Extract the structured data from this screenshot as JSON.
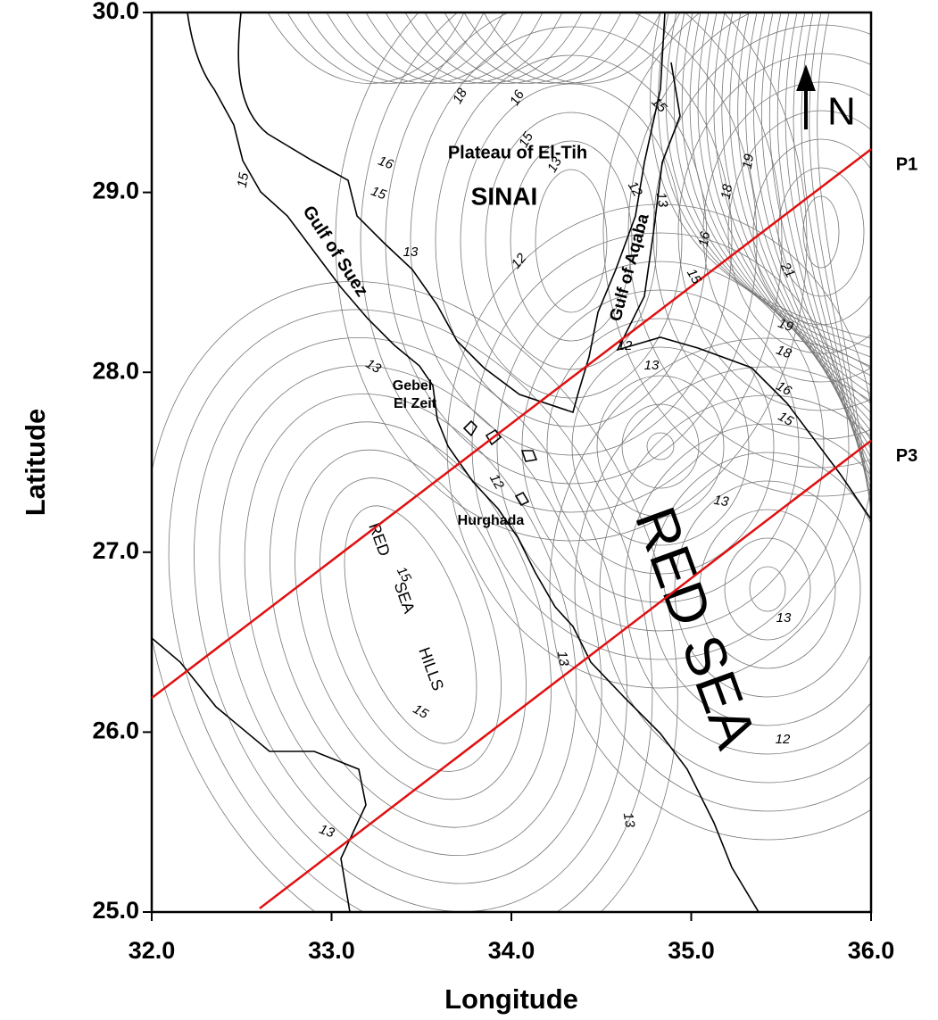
{
  "map": {
    "type": "contour-map",
    "x_label": "Longitude",
    "y_label": "Latitude",
    "xlim": [
      32,
      36
    ],
    "ylim": [
      25,
      30
    ],
    "xticks": [
      {
        "value": 32,
        "label": "32.0"
      },
      {
        "value": 33,
        "label": "33.0"
      },
      {
        "value": 34,
        "label": "34.0"
      },
      {
        "value": 35,
        "label": "35.0"
      },
      {
        "value": 36,
        "label": "36.0"
      }
    ],
    "yticks": [
      {
        "value": 30,
        "label": "30.0"
      },
      {
        "value": 29,
        "label": "29.0"
      },
      {
        "value": 28,
        "label": "28.0"
      },
      {
        "value": 27,
        "label": "27.0"
      },
      {
        "value": 26,
        "label": "26.0"
      },
      {
        "value": 25,
        "label": "25.0"
      }
    ],
    "places": {
      "plateau": "Plateau of El-Tih",
      "sinai": "SINAI",
      "gulf_suez": "Gulf of Suez",
      "gulf_aqaba": "Gulf of Aqaba",
      "gebel_el_zeit": [
        "Gebel",
        "El Zeit"
      ],
      "hurghada": "Hurghada",
      "red_sea": "RED SEA",
      "red_sea_hills": [
        "RED",
        "SEA",
        "HILLS"
      ],
      "north": "N"
    },
    "profiles": [
      {
        "name": "P1",
        "color": "#e01010",
        "start": [
          32.0,
          26.19
        ],
        "end": [
          36.0,
          29.24
        ]
      },
      {
        "name": "P3",
        "color": "#e01010",
        "start": [
          32.6,
          25.02
        ],
        "end": [
          36.0,
          27.62
        ]
      }
    ],
    "contour_labels": [
      18,
      16,
      15,
      15,
      13,
      16,
      15,
      15,
      13,
      12,
      12,
      13,
      19,
      18,
      16,
      15,
      21,
      19,
      18,
      16,
      15,
      12,
      13,
      13,
      13,
      12,
      15,
      13,
      13,
      15,
      12,
      13,
      13
    ]
  }
}
